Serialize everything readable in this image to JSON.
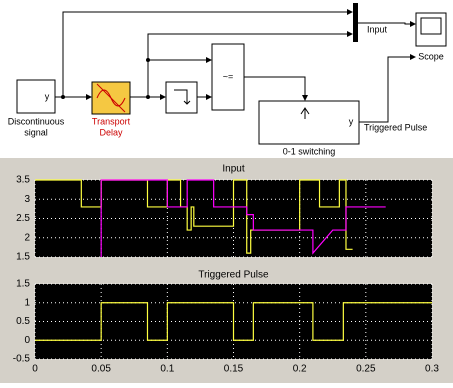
{
  "diagram": {
    "source": {
      "port": "y",
      "label": [
        "Discontinuous",
        "signal"
      ]
    },
    "delay": {
      "label": [
        "Transport",
        "Delay"
      ]
    },
    "relop": {
      "symbol": "~="
    },
    "subsystem": {
      "port": "y",
      "label": "0-1 switching"
    },
    "scope": {
      "label": "Scope"
    },
    "signals": [
      "Input",
      "Triggered Pulse"
    ]
  },
  "scope_window": {
    "plots": [
      {
        "title": "Input",
        "xlim": [
          0,
          0.3
        ],
        "ylim": [
          1.5,
          3.5
        ],
        "xticks": [
          0,
          0.05,
          0.1,
          0.15,
          0.2,
          0.25,
          0.3
        ],
        "yticks": [
          1.5,
          2,
          2.5,
          3,
          3.5
        ],
        "series": [
          {
            "color": "#ffff40",
            "x": [
              0,
              0.035,
              0.035,
              0.05,
              0.05,
              0.085,
              0.085,
              0.1,
              0.1,
              0.11,
              0.11,
              0.115,
              0.115,
              0.118,
              0.118,
              0.12,
              0.12,
              0.15,
              0.15,
              0.16,
              0.16,
              0.163,
              0.163,
              0.2,
              0.2,
              0.215,
              0.215,
              0.23,
              0.23,
              0.235,
              0.235,
              0.24
            ],
            "y": [
              3.5,
              3.5,
              2.8,
              2.8,
              3.5,
              3.5,
              2.8,
              2.8,
              3.5,
              3.5,
              2.8,
              2.8,
              2.2,
              2.2,
              2.8,
              2.8,
              2.3,
              2.3,
              3.5,
              3.5,
              1.6,
              1.6,
              2.2,
              2.2,
              3.5,
              3.5,
              2.8,
              2.8,
              3.5,
              3.5,
              1.7,
              1.7
            ]
          },
          {
            "color": "#ff00ff",
            "x": [
              0.05,
              0.05,
              0.1,
              0.1,
              0.115,
              0.115,
              0.135,
              0.135,
              0.16,
              0.16,
              0.165,
              0.165,
              0.21,
              0.21,
              0.225,
              0.235,
              0.235,
              0.265
            ],
            "y": [
              1.5,
              3.5,
              3.5,
              2.8,
              2.8,
              3.5,
              3.5,
              2.8,
              2.8,
              2.6,
              2.6,
              2.2,
              2.2,
              1.6,
              2.2,
              2.2,
              2.8,
              2.8
            ]
          }
        ]
      },
      {
        "title": "Triggered Pulse",
        "xlim": [
          0,
          0.3
        ],
        "ylim": [
          -0.5,
          1.5
        ],
        "xticks": [
          0,
          0.05,
          0.1,
          0.15,
          0.2,
          0.25,
          0.3
        ],
        "yticks": [
          -0.5,
          0,
          0.5,
          1,
          1.5
        ],
        "series": [
          {
            "color": "#ffff40",
            "x": [
              0,
              0.05,
              0.05,
              0.085,
              0.085,
              0.1,
              0.1,
              0.15,
              0.15,
              0.165,
              0.165,
              0.21,
              0.21,
              0.233,
              0.233,
              0.3
            ],
            "y": [
              0,
              0,
              1,
              1,
              0,
              0,
              1,
              1,
              0,
              0,
              1,
              1,
              0,
              0,
              1,
              1
            ]
          }
        ]
      }
    ]
  }
}
